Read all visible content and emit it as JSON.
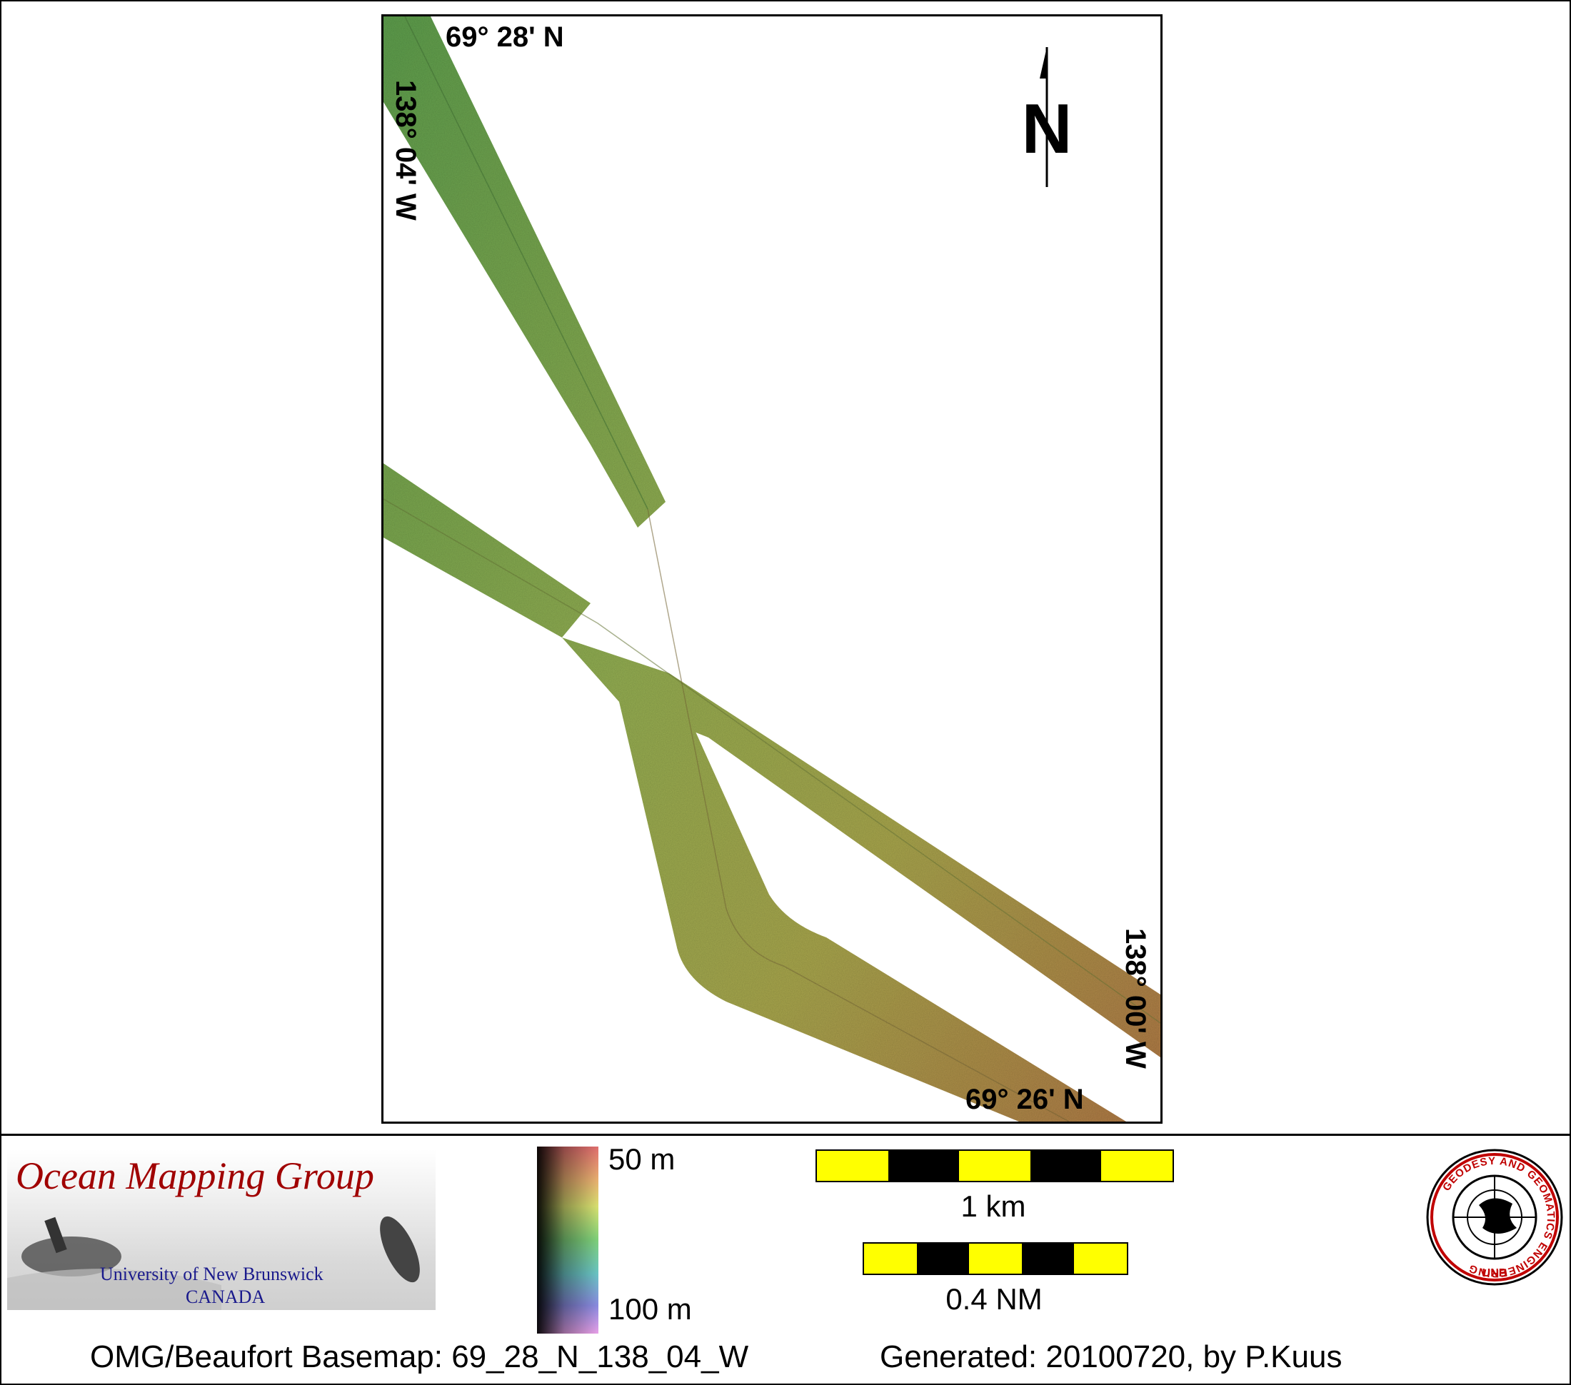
{
  "map": {
    "top_left_lat": "69° 28' N",
    "top_left_lon": "138° 04' W",
    "bottom_right_lat": "69° 26' N",
    "bottom_right_lon": "138° 00' W",
    "north_label": "N",
    "colors": {
      "shallow": "#5e9e4e",
      "mid": "#a8a64e",
      "deep": "#b07846"
    }
  },
  "legend": {
    "colorbar_top": "50 m",
    "colorbar_bottom": "100 m",
    "scale_km": "1 km",
    "scale_nm": "0.4 NM",
    "colors": {
      "scale_fill": "#ffff00",
      "scale_alt": "#000000"
    }
  },
  "logos": {
    "omg_title": "Ocean Mapping Group",
    "omg_university": "University of New Brunswick",
    "omg_country": "CANADA",
    "unb_ring_text": "GEODESY AND GEOMATICS ENGINEERING",
    "unb_bottom_text": "UNB"
  },
  "footer": {
    "basemap": "OMG/Beaufort Basemap: 69_28_N_138_04_W",
    "generated": "Generated: 20100720, by P.Kuus"
  }
}
